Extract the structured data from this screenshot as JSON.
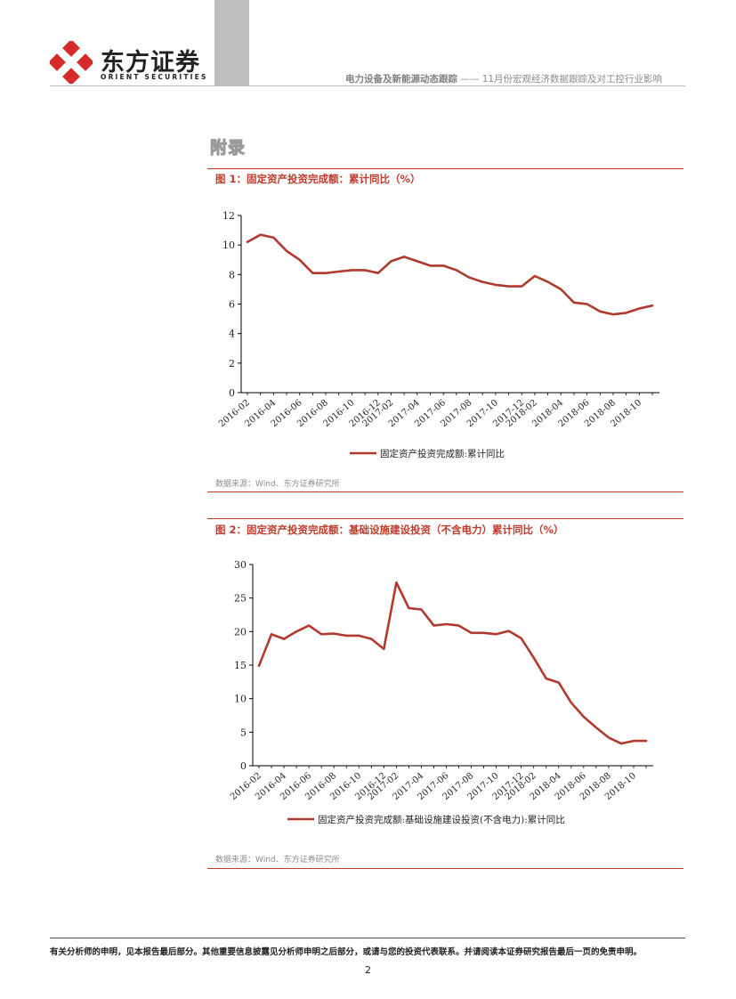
{
  "header": {
    "logo_cn": "东方证券",
    "logo_en": "ORIENT  SECURITIES",
    "report_series": "电力设备及新能源动态跟踪",
    "separator": "——",
    "report_title": "11月份宏观经济数据跟踪及对工控行业影响"
  },
  "section_title": "附录",
  "colors": {
    "accent": "#c0392b",
    "series": "#b03a2e"
  },
  "figures": [
    {
      "title": "图 1：固定资产投资完成额：累计同比（%）",
      "source": "数据来源：Wind、东方证券研究所"
    },
    {
      "title": "图 2：固定资产投资完成额：基础设施建设投资（不含电力）累计同比（%）",
      "source": "数据来源：Wind、东方证券研究所"
    }
  ],
  "chart_data": [
    {
      "type": "line",
      "title": "图 1：固定资产投资完成额：累计同比（%）",
      "ylim": [
        0,
        12
      ],
      "yticks": [
        0,
        2,
        4,
        6,
        8,
        10,
        12
      ],
      "x": [
        "2016-02",
        "2016-03",
        "2016-04",
        "2016-05",
        "2016-06",
        "2016-07",
        "2016-08",
        "2016-09",
        "2016-10",
        "2016-11",
        "2016-12",
        "2017-02",
        "2017-03",
        "2017-04",
        "2017-05",
        "2017-06",
        "2017-07",
        "2017-08",
        "2017-09",
        "2017-10",
        "2017-11",
        "2017-12",
        "2018-02",
        "2018-03",
        "2018-04",
        "2018-05",
        "2018-06",
        "2018-07",
        "2018-08",
        "2018-09",
        "2018-10",
        "2018-11"
      ],
      "xtick_labels": [
        "2016-02",
        "2016-04",
        "2016-06",
        "2016-08",
        "2016-10",
        "2016-12",
        "2017-02",
        "2017-04",
        "2017-06",
        "2017-08",
        "2017-10",
        "2017-12",
        "2018-02",
        "2018-04",
        "2018-06",
        "2018-08",
        "2018-10"
      ],
      "series": [
        {
          "name": "固定资产投资完成额:累计同比",
          "values": [
            10.2,
            10.7,
            10.5,
            9.6,
            9.0,
            8.1,
            8.1,
            8.2,
            8.3,
            8.3,
            8.1,
            8.9,
            9.2,
            8.9,
            8.6,
            8.6,
            8.3,
            7.8,
            7.5,
            7.3,
            7.2,
            7.2,
            7.9,
            7.5,
            7.0,
            6.1,
            6.0,
            5.5,
            5.3,
            5.4,
            5.7,
            5.9
          ]
        }
      ]
    },
    {
      "type": "line",
      "title": "图 2：固定资产投资完成额：基础设施建设投资（不含电力）累计同比（%）",
      "ylim": [
        0,
        30
      ],
      "yticks": [
        0,
        5,
        10,
        15,
        20,
        25,
        30
      ],
      "x": [
        "2016-02",
        "2016-03",
        "2016-04",
        "2016-05",
        "2016-06",
        "2016-07",
        "2016-08",
        "2016-09",
        "2016-10",
        "2016-11",
        "2016-12",
        "2017-02",
        "2017-03",
        "2017-04",
        "2017-05",
        "2017-06",
        "2017-07",
        "2017-08",
        "2017-09",
        "2017-10",
        "2017-11",
        "2017-12",
        "2018-02",
        "2018-03",
        "2018-04",
        "2018-05",
        "2018-06",
        "2018-07",
        "2018-08",
        "2018-09",
        "2018-10",
        "2018-11"
      ],
      "xtick_labels": [
        "2016-02",
        "2016-04",
        "2016-06",
        "2016-08",
        "2016-10",
        "2016-12",
        "2017-02",
        "2017-04",
        "2017-06",
        "2017-08",
        "2017-10",
        "2017-12",
        "2018-02",
        "2018-04",
        "2018-06",
        "2018-08",
        "2018-10"
      ],
      "series": [
        {
          "name": "固定资产投资完成额:基础设施建设投资(不含电力):累计同比",
          "values": [
            14.9,
            19.6,
            18.9,
            20.0,
            20.9,
            19.6,
            19.7,
            19.4,
            19.4,
            18.9,
            17.4,
            27.3,
            23.5,
            23.3,
            20.9,
            21.1,
            20.9,
            19.8,
            19.8,
            19.6,
            20.1,
            19.0,
            16.1,
            13.0,
            12.4,
            9.4,
            7.3,
            5.7,
            4.2,
            3.3,
            3.7,
            3.7
          ]
        }
      ]
    }
  ],
  "footer": {
    "disclaimer": "有关分析师的申明，见本报告最后部分。其他重要信息披露见分析师申明之后部分，或请与您的投资代表联系。并请阅读本证券研究报告最后一页的免责申明。",
    "page_number": "2"
  }
}
